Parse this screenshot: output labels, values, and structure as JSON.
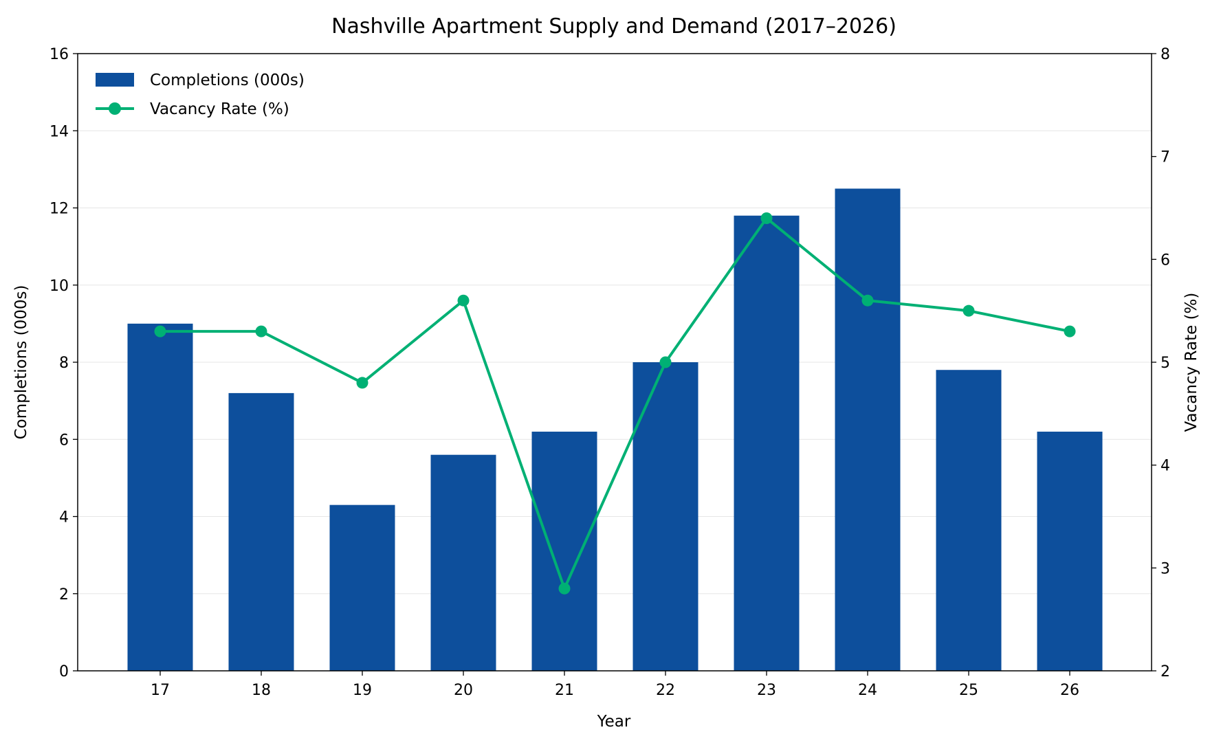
{
  "chart_data": {
    "type": "bar+line",
    "title": "Nashville Apartment Supply and Demand (2017–2026)",
    "xlabel": "Year",
    "ylabel": "Completions (000s)",
    "y2label": "Vacancy Rate (%)",
    "categories": [
      "17",
      "18",
      "19",
      "20",
      "21",
      "22",
      "23",
      "24",
      "25",
      "26"
    ],
    "ylim": [
      0,
      16
    ],
    "yticks": [
      0,
      2,
      4,
      6,
      8,
      10,
      12,
      14,
      16
    ],
    "y2lim": [
      2,
      8
    ],
    "y2ticks": [
      2,
      3,
      4,
      5,
      6,
      7,
      8
    ],
    "grid": "horizontal",
    "legend": "top-left",
    "series": [
      {
        "name": "Completions (000s)",
        "type": "bar",
        "axis": "left",
        "color": "#0d4f9c",
        "values": [
          9.0,
          7.2,
          4.3,
          5.6,
          6.2,
          8.0,
          11.8,
          12.5,
          7.8,
          6.2
        ]
      },
      {
        "name": "Vacancy Rate (%)",
        "type": "line",
        "axis": "right",
        "color": "#00b074",
        "values": [
          5.3,
          5.3,
          4.8,
          5.6,
          2.8,
          5.0,
          6.4,
          5.6,
          5.5,
          5.3
        ]
      }
    ]
  }
}
